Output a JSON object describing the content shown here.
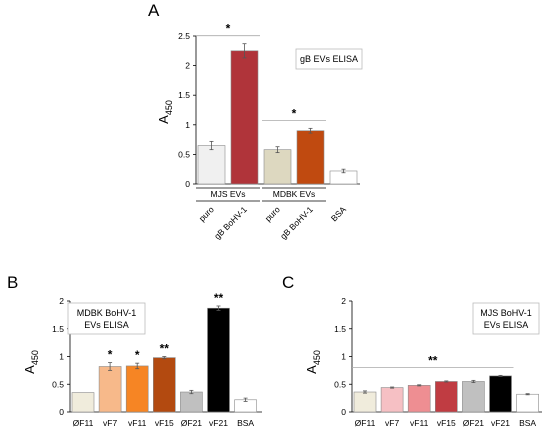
{
  "chart_data": [
    {
      "panel": "A",
      "type": "bar",
      "ylabel": "A",
      "ylabel_sub": "450",
      "ylim": [
        0,
        2.5
      ],
      "yticks": [
        "0",
        "0.5",
        "1",
        "1.5",
        "2",
        "2.5"
      ],
      "legend_lines": [
        "gB EVs ELISA"
      ],
      "categories": [
        "puro",
        "gB BoHV-1",
        "puro",
        "gB BoHV-1",
        "BSA"
      ],
      "values": [
        0.65,
        2.25,
        0.58,
        0.9,
        0.22
      ],
      "errors": [
        0.07,
        0.12,
        0.05,
        0.04,
        0.03
      ],
      "colors": [
        "#f0f0f0",
        "#b0343a",
        "#ddd8c0",
        "#c04a10",
        "#ffffff"
      ],
      "groups": [
        {
          "label": "MJS EVs",
          "members": [
            0,
            1
          ]
        },
        {
          "label": "MDBK EVs",
          "members": [
            2,
            3
          ]
        }
      ],
      "significance": [
        {
          "members": [
            0,
            1
          ],
          "label": "*"
        },
        {
          "members": [
            2,
            3
          ],
          "label": "*"
        }
      ]
    },
    {
      "panel": "B",
      "type": "bar",
      "ylabel": "A",
      "ylabel_sub": "450",
      "ylim": [
        0,
        2.0
      ],
      "yticks": [
        "0",
        "0.5",
        "1",
        "1.5",
        "2"
      ],
      "legend_lines": [
        "MDBK BoHV-1",
        "EVs ELISA"
      ],
      "categories": [
        "ØF11",
        "vF7",
        "vF11",
        "vF15",
        "ØF21",
        "vF21",
        "BSA"
      ],
      "values": [
        0.35,
        0.82,
        0.83,
        0.98,
        0.36,
        1.87,
        0.22
      ],
      "errors": [
        0.0,
        0.07,
        0.05,
        0.02,
        0.03,
        0.04,
        0.03
      ],
      "colors": [
        "#f0ecdc",
        "#f7b98a",
        "#f68524",
        "#b34a10",
        "#c0c0c0",
        "#000000",
        "#ffffff"
      ],
      "stars": [
        "",
        "*",
        "*",
        "**",
        "",
        "**",
        ""
      ]
    },
    {
      "panel": "C",
      "type": "bar",
      "ylabel": "A",
      "ylabel_sub": "450",
      "ylim": [
        0,
        2.0
      ],
      "yticks": [
        "0",
        "0.5",
        "1",
        "1.5",
        "2"
      ],
      "legend_lines": [
        "MJS BoHV-1",
        "EVs ELISA"
      ],
      "categories": [
        "ØF11",
        "vF7",
        "vF11",
        "vF15",
        "ØF21",
        "vF21",
        "BSA"
      ],
      "values": [
        0.36,
        0.44,
        0.48,
        0.55,
        0.55,
        0.65,
        0.32
      ],
      "errors": [
        0.02,
        0.01,
        0.01,
        0.01,
        0.02,
        0.01,
        0.01
      ],
      "colors": [
        "#f0ecdc",
        "#f6c0c4",
        "#ee8e92",
        "#c03c42",
        "#c0c0c0",
        "#000000",
        "#ffffff"
      ],
      "significance": [
        {
          "members": [
            0,
            5
          ],
          "label": "**"
        }
      ]
    }
  ]
}
